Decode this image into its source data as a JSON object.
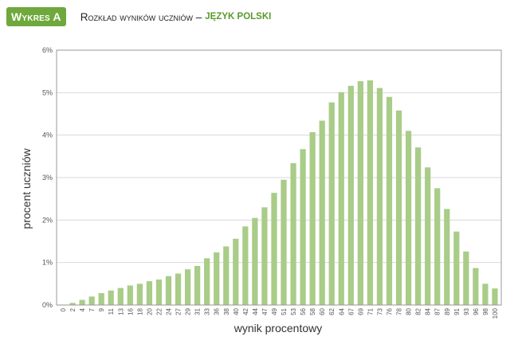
{
  "header": {
    "badge": "Wykres A",
    "title": "Rozkład wyników uczniów –",
    "subtitle": "JĘZYK POLSKI"
  },
  "chart_data": {
    "type": "bar",
    "xlabel": "wynik procentowy",
    "ylabel": "procent uczniów",
    "ylim": [
      0,
      6
    ],
    "yticks": [
      "0%",
      "1%",
      "2%",
      "3%",
      "4%",
      "5%",
      "6%"
    ],
    "grid": true,
    "bar_color": "#a9cc88",
    "categories": [
      "0",
      "2",
      "4",
      "7",
      "9",
      "11",
      "13",
      "16",
      "18",
      "20",
      "22",
      "24",
      "27",
      "29",
      "31",
      "33",
      "36",
      "38",
      "40",
      "42",
      "44",
      "47",
      "49",
      "51",
      "53",
      "56",
      "58",
      "60",
      "62",
      "64",
      "67",
      "69",
      "71",
      "73",
      "76",
      "78",
      "80",
      "82",
      "84",
      "87",
      "89",
      "91",
      "93",
      "96",
      "98",
      "100"
    ],
    "values": [
      0.01,
      0.05,
      0.12,
      0.2,
      0.28,
      0.34,
      0.4,
      0.46,
      0.5,
      0.56,
      0.6,
      0.68,
      0.74,
      0.84,
      0.92,
      1.1,
      1.24,
      1.38,
      1.56,
      1.85,
      2.05,
      2.3,
      2.64,
      2.95,
      3.34,
      3.67,
      4.07,
      4.34,
      4.77,
      5.01,
      5.16,
      5.27,
      5.29,
      5.11,
      4.9,
      4.58,
      4.1,
      3.71,
      3.24,
      2.75,
      2.26,
      1.73,
      1.26,
      0.87,
      0.5,
      0.39
    ]
  }
}
